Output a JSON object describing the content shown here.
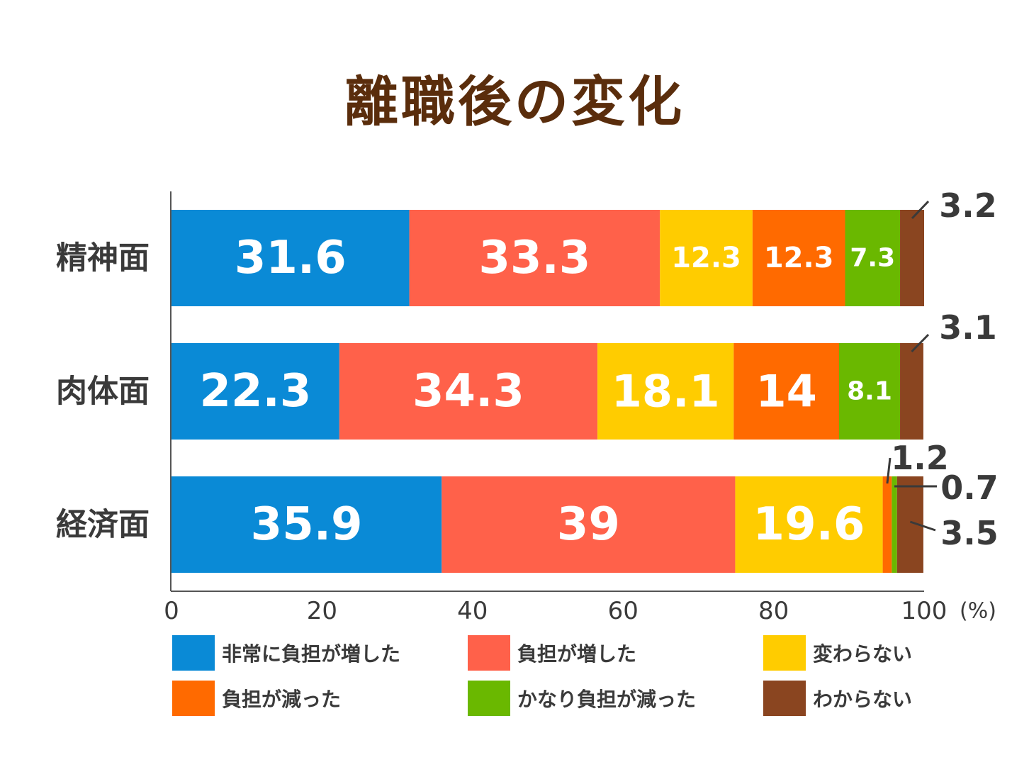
{
  "title": "離職後の変化",
  "chart_data": {
    "type": "bar",
    "orientation": "horizontal",
    "stacked": true,
    "categories": [
      "精神面",
      "肉体面",
      "経済面"
    ],
    "series": [
      {
        "name": "非常に負担が増した",
        "color": "#0a8ad6",
        "values": [
          31.6,
          22.3,
          35.9
        ],
        "labels": [
          "31.6",
          "22.3",
          "35.9"
        ]
      },
      {
        "name": "負担が増した",
        "color": "#ff614a",
        "values": [
          33.3,
          34.3,
          39
        ],
        "labels": [
          "33.3",
          "34.3",
          "39"
        ]
      },
      {
        "name": "変わらない",
        "color": "#ffcc00",
        "values": [
          12.3,
          18.1,
          19.6
        ],
        "labels": [
          "12.3",
          "18.1",
          "19.6"
        ]
      },
      {
        "name": "負担が減った",
        "color": "#ff6a00",
        "values": [
          12.3,
          14,
          1.2
        ],
        "labels": [
          "12.3",
          "14",
          "1.2"
        ]
      },
      {
        "name": "かなり負担が減った",
        "color": "#6ab800",
        "values": [
          7.3,
          8.1,
          0.7
        ],
        "labels": [
          "7.3",
          "8.1",
          "0.7"
        ]
      },
      {
        "name": "わからない",
        "color": "#8a4520",
        "values": [
          3.2,
          3.1,
          3.5
        ],
        "labels": [
          "3.2",
          "3.1",
          "3.5"
        ]
      }
    ],
    "x_ticks": [
      "0",
      "20",
      "40",
      "60",
      "80",
      "100"
    ],
    "x_unit": "(%)",
    "xlim": [
      0,
      100
    ],
    "grid": false,
    "legend_position": "bottom"
  }
}
